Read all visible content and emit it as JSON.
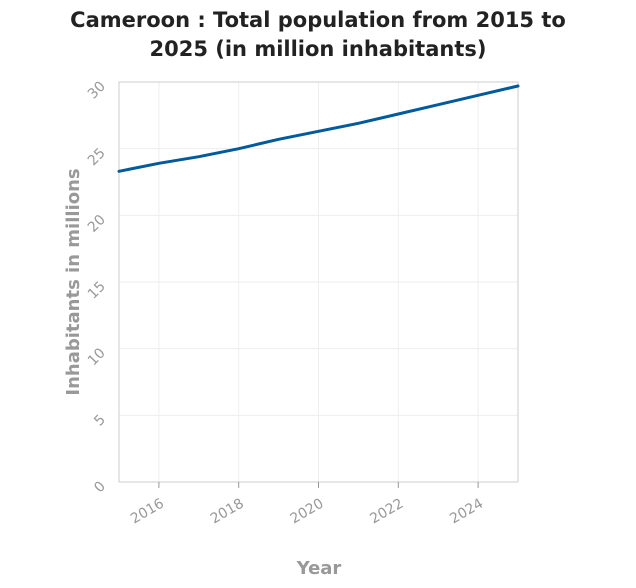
{
  "chart_data": {
    "type": "line",
    "title_lines": [
      "Cameroon : Total population from 2015 to",
      "2025 (in million inhabitants)"
    ],
    "xlabel": "Year",
    "ylabel": "Inhabitants in millions",
    "x": [
      2015,
      2016,
      2017,
      2018,
      2019,
      2020,
      2021,
      2022,
      2023,
      2024,
      2025
    ],
    "series": [
      {
        "values": [
          23.3,
          23.9,
          24.4,
          25.0,
          25.7,
          26.3,
          26.9,
          27.6,
          28.3,
          29.0,
          29.7
        ],
        "color": "#005a9c"
      }
    ],
    "xlim": [
      2015,
      2025
    ],
    "ylim": [
      0,
      30
    ],
    "xticks": [
      2016,
      2018,
      2020,
      2022,
      2024
    ],
    "yticks": [
      0,
      5,
      10,
      15,
      20,
      25,
      30
    ],
    "grid": true
  }
}
